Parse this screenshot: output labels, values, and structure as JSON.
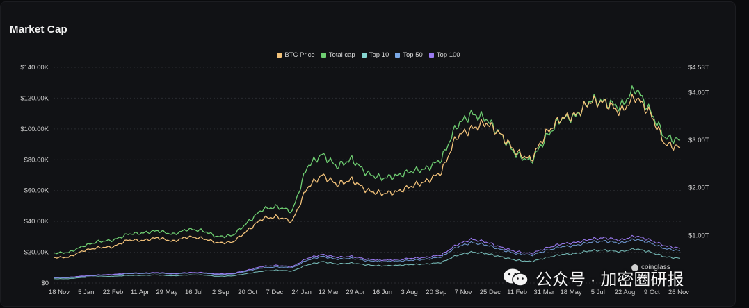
{
  "title": "Market Cap",
  "colors": {
    "btc": "#f2c27a",
    "total": "#6fcf72",
    "top10": "#86d5d0",
    "top50": "#7aa8e6",
    "top100": "#9a7af0"
  },
  "chart_data": {
    "type": "line",
    "title": "Market Cap",
    "legend": [
      "BTC Price",
      "Total cap",
      "Top 10",
      "Top 50",
      "Top 100"
    ],
    "legend_position": "top-center",
    "y_left": {
      "ticks": [
        "$0",
        "$20.00K",
        "$40.00K",
        "$60.00K",
        "$80.00K",
        "$100.00K",
        "$120.00K",
        "$140.00K"
      ],
      "range": [
        0,
        140000
      ]
    },
    "y_right": {
      "ticks": [
        "$1.00T",
        "$2.00T",
        "$3.00T",
        "$4.00T",
        "$4.53T"
      ],
      "range": [
        0,
        4.53
      ]
    },
    "x_ticks": [
      "18 Nov",
      "5 Jan",
      "22 Feb",
      "11 Apr",
      "29 May",
      "16 Jul",
      "2 Sep",
      "20 Oct",
      "7 Dec",
      "24 Jan",
      "12 Mar",
      "29 Apr",
      "16 Jun",
      "3 Aug",
      "20 Sep",
      "7 Nov",
      "25 Dec",
      "11 Feb",
      "31 Mar",
      "18 May",
      "5 Jul",
      "22 Aug",
      "9 Oct",
      "26 Nov"
    ],
    "grid": true,
    "series": [
      {
        "name": "BTC Price",
        "axis": "left",
        "values": [
          16500,
          16800,
          21000,
          23000,
          23500,
          28000,
          27500,
          29500,
          27000,
          30000,
          29000,
          26000,
          26500,
          34000,
          42000,
          43000,
          40000,
          62000,
          70000,
          64000,
          67000,
          60000,
          58000,
          59000,
          63000,
          66000,
          72000,
          95000,
          100000,
          104000,
          96000,
          85000,
          80000,
          97000,
          107000,
          109000,
          118000,
          117000,
          111000,
          121000,
          110000,
          90000,
          88000
        ]
      },
      {
        "name": "Total cap",
        "axis": "right",
        "values": [
          0.63,
          0.64,
          0.78,
          0.87,
          0.9,
          1.03,
          1.05,
          1.1,
          1.02,
          1.13,
          1.1,
          0.97,
          1.0,
          1.27,
          1.55,
          1.6,
          1.5,
          2.45,
          2.7,
          2.45,
          2.6,
          2.3,
          2.2,
          2.25,
          2.35,
          2.4,
          2.6,
          3.3,
          3.55,
          3.45,
          3.1,
          2.7,
          2.55,
          3.05,
          3.45,
          3.5,
          3.85,
          3.8,
          3.7,
          4.1,
          3.6,
          3.05,
          3.0
        ]
      },
      {
        "name": "Top 10",
        "axis": "right",
        "values": [
          0.09,
          0.09,
          0.12,
          0.13,
          0.14,
          0.16,
          0.16,
          0.17,
          0.15,
          0.17,
          0.17,
          0.14,
          0.15,
          0.2,
          0.25,
          0.27,
          0.25,
          0.38,
          0.45,
          0.4,
          0.42,
          0.38,
          0.36,
          0.37,
          0.39,
          0.4,
          0.43,
          0.58,
          0.65,
          0.62,
          0.55,
          0.48,
          0.45,
          0.53,
          0.6,
          0.62,
          0.68,
          0.69,
          0.66,
          0.72,
          0.65,
          0.55,
          0.52
        ]
      },
      {
        "name": "Top 50",
        "axis": "right",
        "values": [
          0.11,
          0.11,
          0.14,
          0.16,
          0.17,
          0.2,
          0.2,
          0.21,
          0.19,
          0.21,
          0.21,
          0.18,
          0.19,
          0.25,
          0.32,
          0.34,
          0.32,
          0.48,
          0.56,
          0.5,
          0.52,
          0.47,
          0.45,
          0.46,
          0.48,
          0.5,
          0.55,
          0.75,
          0.85,
          0.8,
          0.7,
          0.62,
          0.58,
          0.68,
          0.76,
          0.79,
          0.86,
          0.88,
          0.84,
          0.92,
          0.84,
          0.72,
          0.68
        ]
      },
      {
        "name": "Top 100",
        "axis": "right",
        "values": [
          0.12,
          0.12,
          0.15,
          0.17,
          0.18,
          0.21,
          0.21,
          0.22,
          0.2,
          0.22,
          0.22,
          0.19,
          0.2,
          0.27,
          0.35,
          0.37,
          0.34,
          0.52,
          0.6,
          0.54,
          0.56,
          0.5,
          0.48,
          0.49,
          0.52,
          0.54,
          0.59,
          0.8,
          0.92,
          0.86,
          0.75,
          0.66,
          0.62,
          0.73,
          0.82,
          0.85,
          0.92,
          0.95,
          0.9,
          0.99,
          0.9,
          0.78,
          0.73
        ]
      }
    ]
  },
  "watermark": {
    "text": "公众号 · 加密圈研报",
    "source": "coinglass"
  }
}
